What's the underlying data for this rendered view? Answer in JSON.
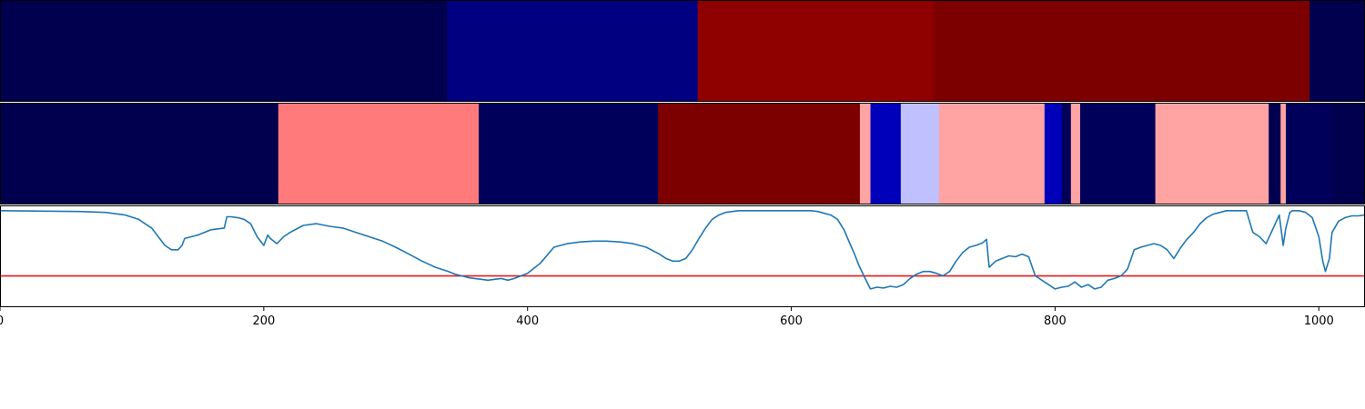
{
  "chart_data": {
    "type": "heatmap",
    "title": "",
    "xlabel": "",
    "ylabel": "",
    "xlim": [
      0,
      1035
    ],
    "grid": false,
    "legend": "none",
    "x_ticks": [
      {
        "value": 0,
        "label": "0"
      },
      {
        "value": 200,
        "label": "200"
      },
      {
        "value": 400,
        "label": "400"
      },
      {
        "value": 600,
        "label": "600"
      },
      {
        "value": 800,
        "label": "800"
      },
      {
        "value": 1000,
        "label": "1000"
      }
    ],
    "segment_rows": [
      {
        "segments": [
          {
            "start": 0,
            "end": 339,
            "color": "#00004f"
          },
          {
            "start": 339,
            "end": 529,
            "color": "#000080"
          },
          {
            "start": 529,
            "end": 708,
            "color": "#8f0000"
          },
          {
            "start": 708,
            "end": 993,
            "color": "#7d0000"
          },
          {
            "start": 993,
            "end": 1035,
            "color": "#00004f"
          }
        ]
      },
      {
        "segments": [
          {
            "start": 0,
            "end": 211,
            "color": "#00004f"
          },
          {
            "start": 211,
            "end": 363,
            "color": "#ff7b7b"
          },
          {
            "start": 363,
            "end": 499,
            "color": "#00005a"
          },
          {
            "start": 499,
            "end": 652,
            "color": "#7d0000"
          },
          {
            "start": 652,
            "end": 660,
            "color": "#ffa3a3"
          },
          {
            "start": 660,
            "end": 683,
            "color": "#0000bb"
          },
          {
            "start": 683,
            "end": 712,
            "color": "#c0c0ff"
          },
          {
            "start": 712,
            "end": 792,
            "color": "#ffa3a3"
          },
          {
            "start": 792,
            "end": 805,
            "color": "#0000bb"
          },
          {
            "start": 805,
            "end": 812,
            "color": "#00005a"
          },
          {
            "start": 812,
            "end": 819,
            "color": "#ffa3a3"
          },
          {
            "start": 819,
            "end": 876,
            "color": "#00005a"
          },
          {
            "start": 876,
            "end": 962,
            "color": "#ffa3a3"
          },
          {
            "start": 962,
            "end": 971,
            "color": "#00004f"
          },
          {
            "start": 971,
            "end": 975,
            "color": "#ffa3a3"
          },
          {
            "start": 975,
            "end": 1010,
            "color": "#00005a"
          },
          {
            "start": 1010,
            "end": 1035,
            "color": "#00004f"
          }
        ]
      }
    ],
    "line_plot": {
      "ylim": [
        -0.1,
        1.05
      ],
      "threshold": 0.25,
      "threshold_color": "#e8191c",
      "line_color": "#1f77b4",
      "series": [
        {
          "x": [
            0,
            60,
            80,
            95,
            105,
            115,
            125,
            130,
            135,
            138,
            140,
            150,
            160,
            170,
            172,
            175,
            180,
            185,
            190,
            195,
            200,
            203,
            205,
            210,
            215,
            220,
            230,
            240,
            250,
            260,
            270,
            280,
            290,
            300,
            310,
            320,
            330,
            340,
            345,
            350,
            355,
            360,
            365,
            370,
            375,
            380,
            385,
            390,
            395,
            400,
            410,
            420,
            430,
            440,
            450,
            460,
            470,
            480,
            490,
            500,
            505,
            510,
            515,
            520,
            525,
            530,
            535,
            540,
            545,
            550,
            560,
            570,
            580,
            590,
            600,
            605,
            610,
            615,
            620,
            625,
            630,
            635,
            640,
            645,
            648,
            651,
            655,
            660,
            665,
            670,
            675,
            680,
            685,
            690,
            695,
            700,
            705,
            710,
            715,
            720,
            725,
            730,
            735,
            740,
            745,
            748,
            750,
            755,
            760,
            765,
            770,
            775,
            780,
            785,
            790,
            795,
            800,
            805,
            810,
            815,
            820,
            825,
            830,
            835,
            840,
            845,
            850,
            855,
            860,
            865,
            870,
            875,
            880,
            885,
            890,
            895,
            900,
            905,
            910,
            915,
            920,
            925,
            930,
            935,
            940,
            945,
            950,
            955,
            960,
            963,
            967,
            970,
            973,
            975,
            978,
            980,
            985,
            990,
            995,
            1000,
            1003,
            1005,
            1008,
            1010,
            1015,
            1020,
            1025,
            1030,
            1035
          ],
          "y": [
            1.0,
            0.99,
            0.98,
            0.95,
            0.9,
            0.8,
            0.6,
            0.55,
            0.55,
            0.6,
            0.68,
            0.72,
            0.78,
            0.8,
            0.93,
            0.93,
            0.92,
            0.9,
            0.85,
            0.7,
            0.6,
            0.72,
            0.68,
            0.62,
            0.7,
            0.75,
            0.83,
            0.85,
            0.82,
            0.8,
            0.75,
            0.7,
            0.65,
            0.58,
            0.5,
            0.42,
            0.35,
            0.3,
            0.27,
            0.25,
            0.23,
            0.22,
            0.21,
            0.2,
            0.21,
            0.22,
            0.2,
            0.22,
            0.25,
            0.28,
            0.4,
            0.58,
            0.62,
            0.64,
            0.65,
            0.65,
            0.64,
            0.62,
            0.58,
            0.5,
            0.45,
            0.42,
            0.42,
            0.45,
            0.55,
            0.68,
            0.8,
            0.9,
            0.95,
            0.98,
            1.0,
            1.0,
            1.0,
            1.0,
            1.0,
            1.0,
            1.0,
            1.0,
            0.99,
            0.97,
            0.95,
            0.9,
            0.78,
            0.6,
            0.5,
            0.38,
            0.25,
            0.1,
            0.12,
            0.11,
            0.13,
            0.12,
            0.15,
            0.22,
            0.27,
            0.3,
            0.3,
            0.28,
            0.25,
            0.3,
            0.42,
            0.52,
            0.58,
            0.6,
            0.63,
            0.67,
            0.35,
            0.42,
            0.45,
            0.48,
            0.47,
            0.5,
            0.47,
            0.25,
            0.2,
            0.15,
            0.1,
            0.12,
            0.13,
            0.18,
            0.12,
            0.15,
            0.1,
            0.12,
            0.2,
            0.22,
            0.25,
            0.33,
            0.55,
            0.58,
            0.6,
            0.62,
            0.6,
            0.55,
            0.45,
            0.57,
            0.67,
            0.75,
            0.85,
            0.92,
            0.96,
            0.98,
            1.0,
            1.0,
            1.0,
            1.0,
            0.75,
            0.7,
            0.62,
            0.72,
            0.85,
            0.95,
            0.6,
            0.8,
            0.98,
            1.0,
            1.0,
            0.98,
            0.92,
            0.7,
            0.42,
            0.3,
            0.45,
            0.75,
            0.88,
            0.92,
            0.94,
            0.94,
            0.95
          ]
        }
      ]
    }
  }
}
